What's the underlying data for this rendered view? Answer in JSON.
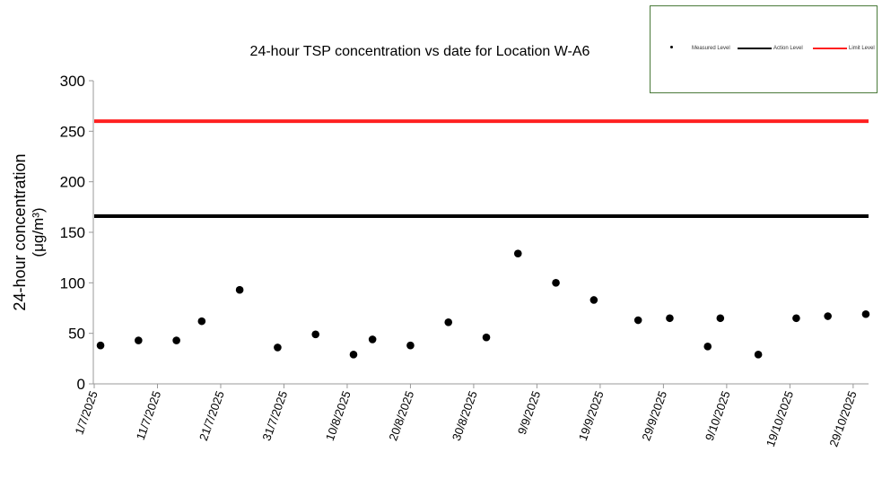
{
  "chart_data": {
    "type": "scatter",
    "title": "24-hour TSP concentration vs date for Location W-A6",
    "xlabel": "",
    "ylabel": "24-hour concentration",
    "ylabel_unit": "(μg/m³)",
    "ylim": [
      0,
      300
    ],
    "yticks": [
      0,
      50,
      100,
      150,
      200,
      250,
      300
    ],
    "xlim": [
      "1/7/2025",
      "1/11/2025"
    ],
    "xticks": [
      "1/7/2025",
      "11/7/2025",
      "21/7/2025",
      "31/7/2025",
      "10/8/2025",
      "20/8/2025",
      "30/8/2025",
      "9/9/2025",
      "19/9/2025",
      "29/9/2025",
      "9/10/2025",
      "19/10/2025",
      "29/10/2025"
    ],
    "grid": false,
    "legend_position": "top-right",
    "series": [
      {
        "name": "Measured Level",
        "color": "#000000",
        "points": [
          [
            "2/7/2025",
            38
          ],
          [
            "8/7/2025",
            43
          ],
          [
            "14/7/2025",
            43
          ],
          [
            "18/7/2025",
            62
          ],
          [
            "24/7/2025",
            93
          ],
          [
            "30/7/2025",
            36
          ],
          [
            "5/8/2025",
            49
          ],
          [
            "11/8/2025",
            29
          ],
          [
            "14/8/2025",
            44
          ],
          [
            "20/8/2025",
            38
          ],
          [
            "26/8/2025",
            61
          ],
          [
            "1/9/2025",
            46
          ],
          [
            "6/9/2025",
            129
          ],
          [
            "12/9/2025",
            100
          ],
          [
            "18/9/2025",
            83
          ],
          [
            "25/9/2025",
            63
          ],
          [
            "30/9/2025",
            65
          ],
          [
            "6/10/2025",
            37
          ],
          [
            "8/10/2025",
            65
          ],
          [
            "14/10/2025",
            29
          ],
          [
            "20/10/2025",
            65
          ],
          [
            "25/10/2025",
            67
          ],
          [
            "31/10/2025",
            69
          ]
        ]
      },
      {
        "name": "Action Level",
        "color": "#000000",
        "value": 166
      },
      {
        "name": "Limit Level",
        "color": "#ff2020",
        "value": 260
      }
    ]
  }
}
